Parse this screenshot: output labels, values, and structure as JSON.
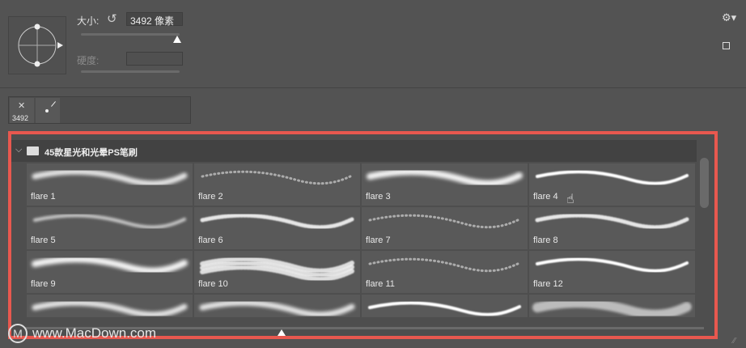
{
  "brush_settings": {
    "size_label": "大小:",
    "size_value": "3492 像素",
    "size_slider_fraction": 0.97,
    "hardness_label": "硬度:",
    "hardness_value": ""
  },
  "recent_brushes": [
    {
      "label": "3492"
    },
    {
      "label": ""
    }
  ],
  "group": {
    "name": "45款星光和光晕PS笔刷",
    "expanded": true
  },
  "brushes": [
    {
      "name": "flare 1",
      "stroke": "soft-dense"
    },
    {
      "name": "flare 2",
      "stroke": "dotted-faint"
    },
    {
      "name": "flare 3",
      "stroke": "soft-bright"
    },
    {
      "name": "flare 4",
      "stroke": "sharp"
    },
    {
      "name": "flare 5",
      "stroke": "thin-soft"
    },
    {
      "name": "flare 6",
      "stroke": "dotted-bright"
    },
    {
      "name": "flare 7",
      "stroke": "dotted-faint"
    },
    {
      "name": "flare 8",
      "stroke": "dotted-bright"
    },
    {
      "name": "flare 9",
      "stroke": "soft-bright"
    },
    {
      "name": "flare 10",
      "stroke": "multi"
    },
    {
      "name": "flare 11",
      "stroke": "dotted-faint"
    },
    {
      "name": "flare 12",
      "stroke": "sharp"
    },
    {
      "name": "",
      "stroke": "soft-dense"
    },
    {
      "name": "",
      "stroke": "soft-dense"
    },
    {
      "name": "",
      "stroke": "sharp"
    },
    {
      "name": "",
      "stroke": "rings"
    }
  ],
  "colors": {
    "highlight_border": "#e8584f",
    "panel": "#535353"
  },
  "watermark": "www.MacDown.com"
}
